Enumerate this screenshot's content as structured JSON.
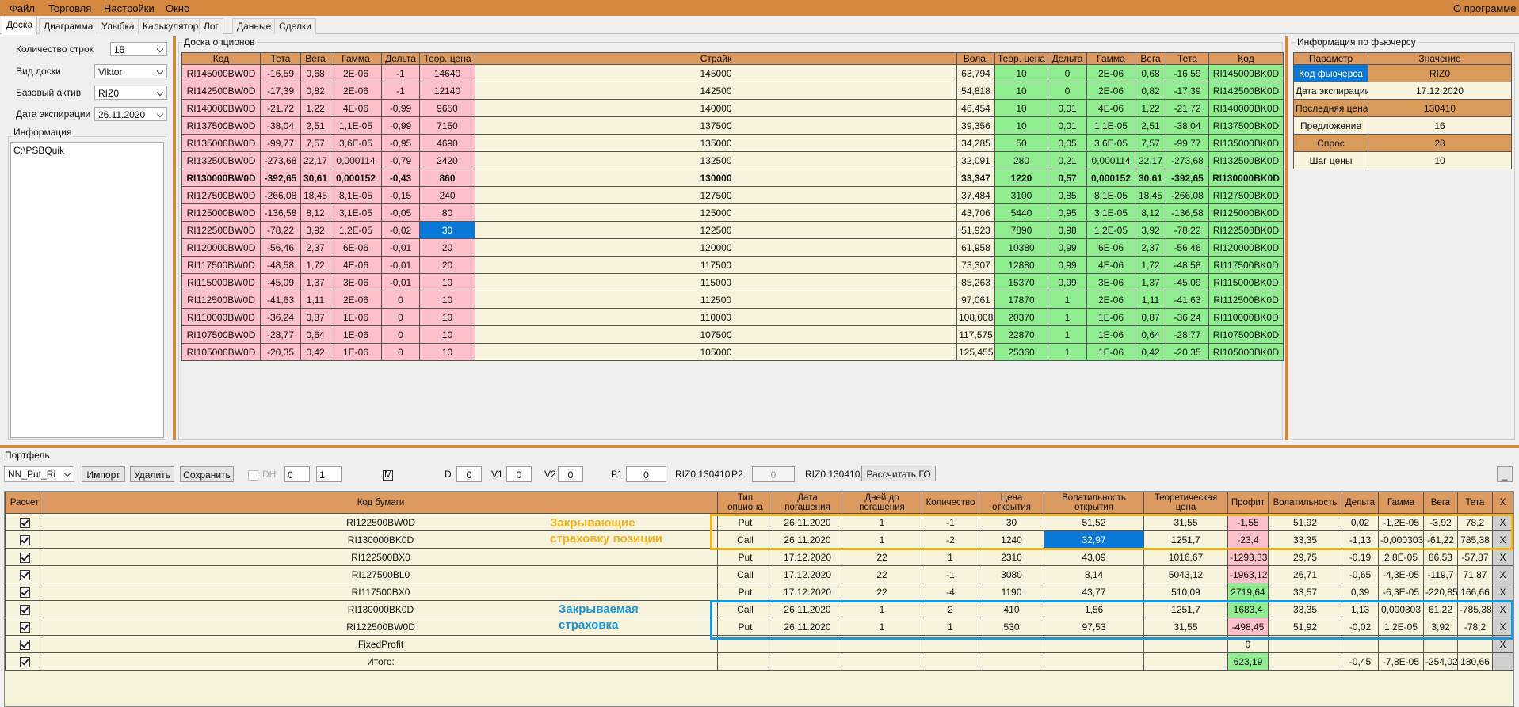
{
  "menu": {
    "items": [
      "Файл",
      "Торговля",
      "Настройки",
      "Окно"
    ],
    "about": "О программе"
  },
  "tabs": [
    "Доска",
    "Диаграмма",
    "Улыбка",
    "Калькулятор",
    "Лог",
    "Данные",
    "Сделки"
  ],
  "settings": [
    {
      "label": "Количество строк",
      "value": "15"
    },
    {
      "label": "Вид доски",
      "value": "Viktor"
    },
    {
      "label": "Базовый актив",
      "value": "RIZ0"
    },
    {
      "label": "Дата экспирации",
      "value": "26.11.2020"
    }
  ],
  "info": {
    "title": "Информация",
    "text": "C:\\PSBQuik"
  },
  "board": {
    "title": "Доска опционов",
    "headers": [
      "Код",
      "Тета",
      "Вега",
      "Гамма",
      "Дельта",
      "Теор. цена",
      "Страйк",
      "Вола.",
      "Теор. цена",
      "Дельта",
      "Гамма",
      "Вега",
      "Тета",
      "Код"
    ],
    "rows": [
      [
        "RI145000BW0D",
        "-16,59",
        "0,68",
        "2E-06",
        "-1",
        "14640",
        "145000",
        "63,794",
        "10",
        "0",
        "2E-06",
        "0,68",
        "-16,59",
        "RI145000BK0D"
      ],
      [
        "RI142500BW0D",
        "-17,39",
        "0,82",
        "2E-06",
        "-1",
        "12140",
        "142500",
        "54,818",
        "10",
        "0",
        "2E-06",
        "0,82",
        "-17,39",
        "RI142500BK0D"
      ],
      [
        "RI140000BW0D",
        "-21,72",
        "1,22",
        "4E-06",
        "-0,99",
        "9650",
        "140000",
        "46,454",
        "10",
        "0,01",
        "4E-06",
        "1,22",
        "-21,72",
        "RI140000BK0D"
      ],
      [
        "RI137500BW0D",
        "-38,04",
        "2,51",
        "1,1E-05",
        "-0,99",
        "7150",
        "137500",
        "39,356",
        "10",
        "0,01",
        "1,1E-05",
        "2,51",
        "-38,04",
        "RI137500BK0D"
      ],
      [
        "RI135000BW0D",
        "-99,77",
        "7,57",
        "3,6E-05",
        "-0,95",
        "4690",
        "135000",
        "34,285",
        "50",
        "0,05",
        "3,6E-05",
        "7,57",
        "-99,77",
        "RI135000BK0D"
      ],
      [
        "RI132500BW0D",
        "-273,68",
        "22,17",
        "0,000114",
        "-0,79",
        "2420",
        "132500",
        "32,091",
        "280",
        "0,21",
        "0,000114",
        "22,17",
        "-273,68",
        "RI132500BK0D"
      ],
      [
        "RI130000BW0D",
        "-392,65",
        "30,61",
        "0,000152",
        "-0,43",
        "860",
        "130000",
        "33,347",
        "1220",
        "0,57",
        "0,000152",
        "30,61",
        "-392,65",
        "RI130000BK0D"
      ],
      [
        "RI127500BW0D",
        "-266,08",
        "18,45",
        "8,1E-05",
        "-0,15",
        "240",
        "127500",
        "37,484",
        "3100",
        "0,85",
        "8,1E-05",
        "18,45",
        "-266,08",
        "RI127500BK0D"
      ],
      [
        "RI125000BW0D",
        "-136,58",
        "8,12",
        "3,1E-05",
        "-0,05",
        "80",
        "125000",
        "43,706",
        "5440",
        "0,95",
        "3,1E-05",
        "8,12",
        "-136,58",
        "RI125000BK0D"
      ],
      [
        "RI122500BW0D",
        "-78,22",
        "3,92",
        "1,2E-05",
        "-0,02",
        "30",
        "122500",
        "51,923",
        "7890",
        "0,98",
        "1,2E-05",
        "3,92",
        "-78,22",
        "RI122500BK0D"
      ],
      [
        "RI120000BW0D",
        "-56,46",
        "2,37",
        "6E-06",
        "-0,01",
        "20",
        "120000",
        "61,958",
        "10380",
        "0,99",
        "6E-06",
        "2,37",
        "-56,46",
        "RI120000BK0D"
      ],
      [
        "RI117500BW0D",
        "-48,58",
        "1,72",
        "4E-06",
        "-0,01",
        "20",
        "117500",
        "73,307",
        "12880",
        "0,99",
        "4E-06",
        "1,72",
        "-48,58",
        "RI117500BK0D"
      ],
      [
        "RI115000BW0D",
        "-45,09",
        "1,37",
        "3E-06",
        "-0,01",
        "10",
        "115000",
        "85,263",
        "15370",
        "0,99",
        "3E-06",
        "1,37",
        "-45,09",
        "RI115000BK0D"
      ],
      [
        "RI112500BW0D",
        "-41,63",
        "1,11",
        "2E-06",
        "0",
        "10",
        "112500",
        "97,061",
        "17870",
        "1",
        "2E-06",
        "1,11",
        "-41,63",
        "RI112500BK0D"
      ],
      [
        "RI110000BW0D",
        "-36,24",
        "0,87",
        "1E-06",
        "0",
        "10",
        "110000",
        "108,008",
        "20370",
        "1",
        "1E-06",
        "0,87",
        "-36,24",
        "RI110000BK0D"
      ],
      [
        "RI107500BW0D",
        "-28,77",
        "0,64",
        "1E-06",
        "0",
        "10",
        "107500",
        "117,575",
        "22870",
        "1",
        "1E-06",
        "0,64",
        "-28,77",
        "RI107500BK0D"
      ],
      [
        "RI105000BW0D",
        "-20,35",
        "0,42",
        "1E-06",
        "0",
        "10",
        "105000",
        "125,455",
        "25360",
        "1",
        "1E-06",
        "0,42",
        "-20,35",
        "RI105000BK0D"
      ]
    ]
  },
  "futures": {
    "title": "Информация по фьючерсу",
    "headers": [
      "Параметр",
      "Значение"
    ],
    "rows": [
      [
        "Код фьючерса",
        "RIZ0"
      ],
      [
        "Дата экспирации",
        "17.12.2020"
      ],
      [
        "Последняя цена",
        "130410"
      ],
      [
        "Предложение",
        "16"
      ],
      [
        "Спрос",
        "28"
      ],
      [
        "Шаг цены",
        "10"
      ]
    ]
  },
  "portfolio": {
    "title": "Портфель",
    "toolbar": {
      "preset": "NN_Put_Ri",
      "buttons": [
        "Импорт",
        "Удалить",
        "Сохранить"
      ],
      "dh": "DH",
      "spin1": "0",
      "spin2": "1",
      "m": "M",
      "fields": [
        {
          "label": "D",
          "value": "0"
        },
        {
          "label": "V1",
          "value": "0"
        },
        {
          "label": "V2",
          "value": "0"
        },
        {
          "label": "P1",
          "value": "0",
          "note": "RIZ0 130410"
        },
        {
          "label": "P2",
          "value": "0",
          "note": "RIZ0 130410"
        }
      ],
      "calc": "Рассчитать ГО",
      "minimize": "_"
    },
    "headers": [
      "Расчет",
      "Код бумаги",
      "Тип опциона",
      "Дата погашения",
      "Дней до погашения",
      "Количество",
      "Цена открытия",
      "Волатильность открытия",
      "Теоретическая цена",
      "Профит",
      "Волатильность",
      "Дельта",
      "Гамма",
      "Вега",
      "Тета",
      "X"
    ],
    "rows": [
      [
        "RI122500BW0D",
        "Put",
        "26.11.2020",
        "1",
        "-1",
        "30",
        "51,52",
        "31,55",
        "-1,55",
        "51,92",
        "0,02",
        "-1,2E-05",
        "-3,92",
        "78,2",
        "X"
      ],
      [
        "RI130000BK0D",
        "Call",
        "26.11.2020",
        "1",
        "-2",
        "1240",
        "32,97",
        "1251,7",
        "-23,4",
        "33,35",
        "-1,13",
        "-0,000303",
        "-61,22",
        "785,38",
        "X"
      ],
      [
        "RI122500BX0",
        "Put",
        "17.12.2020",
        "22",
        "1",
        "2310",
        "43,09",
        "1016,67",
        "-1293,33",
        "29,75",
        "-0,19",
        "2,8E-05",
        "86,53",
        "-57,87",
        "X"
      ],
      [
        "RI127500BL0",
        "Call",
        "17.12.2020",
        "22",
        "-1",
        "3080",
        "8,14",
        "5043,12",
        "-1963,12",
        "26,71",
        "-0,65",
        "-4,3E-05",
        "-119,7",
        "71,87",
        "X"
      ],
      [
        "RI117500BX0",
        "Put",
        "17.12.2020",
        "22",
        "-4",
        "1190",
        "43,77",
        "510,09",
        "2719,64",
        "33,57",
        "0,39",
        "-6,3E-05",
        "-220,85",
        "166,66",
        "X"
      ],
      [
        "RI130000BK0D",
        "Call",
        "26.11.2020",
        "1",
        "2",
        "410",
        "1,56",
        "1251,7",
        "1683,4",
        "33,35",
        "1,13",
        "0,000303",
        "61,22",
        "-785,38",
        "X"
      ],
      [
        "RI122500BW0D",
        "Put",
        "26.11.2020",
        "1",
        "1",
        "530",
        "97,53",
        "31,55",
        "-498,45",
        "51,92",
        "-0,02",
        "1,2E-05",
        "3,92",
        "-78,2",
        "X"
      ],
      [
        "FixedProfit",
        null,
        null,
        null,
        null,
        null,
        null,
        null,
        "0",
        null,
        null,
        null,
        null,
        null,
        "X"
      ],
      [
        "Итого:",
        null,
        null,
        null,
        null,
        null,
        null,
        null,
        "623,19",
        null,
        "-0,45",
        "-7,8E-05",
        "-254,02",
        "180,66",
        null
      ]
    ],
    "annotations": [
      {
        "text": "Закрывающие страховку позиции",
        "color": "#f5b21c"
      },
      {
        "text": "Закрываемая страховка",
        "color": "#1b96d6"
      }
    ]
  }
}
